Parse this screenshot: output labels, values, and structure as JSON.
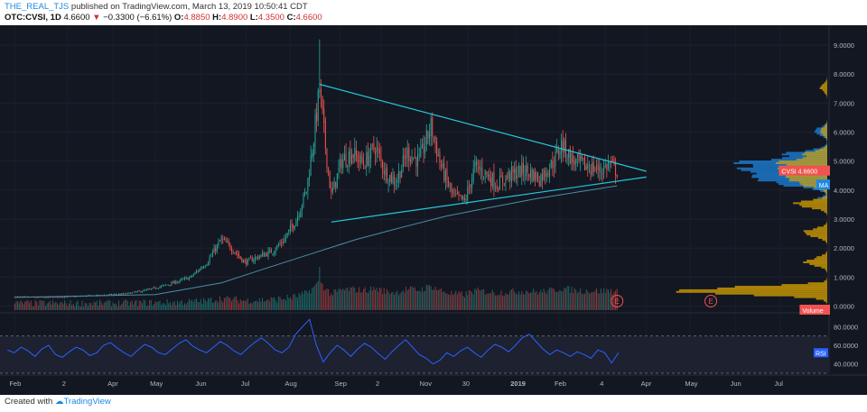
{
  "header": {
    "username": "THE_REAL_TJS",
    "published_text": "published on TradingView.com, March 13, 2019 10:50:41 CDT",
    "symbol_line": "OTC:CVSI, 1D",
    "last": "4.6600",
    "change_arrow": "▼",
    "change": "−0.3300 (−6.61%)",
    "o_label": "O:",
    "o": "4.8850",
    "h_label": "H:",
    "h": "4.8900",
    "l_label": "L:",
    "l": "4.3500",
    "c_label": "C:",
    "c": "4.6600"
  },
  "footer": {
    "prefix": "Created with",
    "brand": "TradingView"
  },
  "colors": {
    "background": "#131722",
    "up": "#26a69a",
    "down": "#ef5350",
    "trendline": "#26c6da",
    "ma": "#4a8fa8",
    "rsi": "#2962ff",
    "volume_profile": "#e0a800",
    "volume_profile_value": "#1e88e5"
  },
  "chart_data": [
    {
      "type": "candlestick",
      "symbol": "OTC:CVSI",
      "interval": "1D",
      "x_tick_labels": [
        "Feb",
        "2",
        "Apr",
        "May",
        "Jun",
        "Jul",
        "Aug",
        "Sep",
        "2",
        "Nov",
        "30",
        "2019",
        "Feb",
        "4",
        "Apr",
        "May",
        "Jun",
        "Jul"
      ],
      "y_tick_labels": [
        "9.0000",
        "8.0000",
        "7.0000",
        "6.0000",
        "5.0000",
        "4.0000",
        "3.0000",
        "2.0000",
        "1.0000",
        "0.0000"
      ],
      "ylim": [
        -0.2,
        9.5
      ],
      "price_path": [
        [
          "2018-01-25",
          0.32
        ],
        [
          "2018-02-15",
          0.3
        ],
        [
          "2018-03-15",
          0.35
        ],
        [
          "2018-04-10",
          0.42
        ],
        [
          "2018-04-25",
          0.55
        ],
        [
          "2018-05-10",
          0.75
        ],
        [
          "2018-05-25",
          1.0
        ],
        [
          "2018-06-05",
          1.5
        ],
        [
          "2018-06-15",
          2.3
        ],
        [
          "2018-06-22",
          2.0
        ],
        [
          "2018-07-01",
          1.5
        ],
        [
          "2018-07-10",
          1.7
        ],
        [
          "2018-07-20",
          1.9
        ],
        [
          "2018-07-28",
          2.3
        ],
        [
          "2018-08-05",
          3.0
        ],
        [
          "2018-08-12",
          4.0
        ],
        [
          "2018-08-17",
          5.8
        ],
        [
          "2018-08-21",
          7.5
        ],
        [
          "2018-08-25",
          5.5
        ],
        [
          "2018-08-29",
          3.8
        ],
        [
          "2018-09-05",
          5.0
        ],
        [
          "2018-09-12",
          5.3
        ],
        [
          "2018-09-20",
          4.9
        ],
        [
          "2018-09-28",
          5.5
        ],
        [
          "2018-10-05",
          4.6
        ],
        [
          "2018-10-12",
          4.3
        ],
        [
          "2018-10-20",
          5.3
        ],
        [
          "2018-10-28",
          5.0
        ],
        [
          "2018-11-05",
          6.2
        ],
        [
          "2018-11-12",
          4.8
        ],
        [
          "2018-11-20",
          3.8
        ],
        [
          "2018-11-28",
          3.6
        ],
        [
          "2018-12-05",
          4.8
        ],
        [
          "2018-12-12",
          4.6
        ],
        [
          "2018-12-20",
          4.2
        ],
        [
          "2018-12-28",
          4.5
        ],
        [
          "2019-01-08",
          4.7
        ],
        [
          "2019-01-18",
          4.4
        ],
        [
          "2019-01-28",
          5.0
        ],
        [
          "2019-02-02",
          5.6
        ],
        [
          "2019-02-10",
          5.0
        ],
        [
          "2019-02-20",
          4.8
        ],
        [
          "2019-03-01",
          4.7
        ],
        [
          "2019-03-07",
          4.9
        ],
        [
          "2019-03-12",
          4.66
        ]
      ],
      "overlays": [
        {
          "name": "upper-trendline",
          "points": [
            [
              "2018-08-21",
              7.65
            ],
            [
              "2019-04-01",
              4.65
            ]
          ]
        },
        {
          "name": "lower-trendline",
          "points": [
            [
              "2018-08-29",
              2.9
            ],
            [
              "2019-04-01",
              4.45
            ]
          ]
        },
        {
          "name": "MA",
          "points": [
            [
              "2018-01-25",
              0.3
            ],
            [
              "2018-05-01",
              0.4
            ],
            [
              "2018-06-15",
              0.8
            ],
            [
              "2018-07-15",
              1.3
            ],
            [
              "2018-08-15",
              1.8
            ],
            [
              "2018-09-15",
              2.3
            ],
            [
              "2018-10-15",
              2.7
            ],
            [
              "2018-11-15",
              3.1
            ],
            [
              "2018-12-15",
              3.4
            ],
            [
              "2019-01-15",
              3.7
            ],
            [
              "2019-02-15",
              3.95
            ],
            [
              "2019-03-12",
              4.15
            ]
          ]
        }
      ],
      "earnings_markers": [
        {
          "date": "2019-03-12",
          "label": "E"
        },
        {
          "date": "2019-05-15",
          "label": "E"
        }
      ],
      "price_labels": [
        {
          "label": "CVSI",
          "value": "4.6600"
        },
        {
          "label": "MA",
          "value": ""
        },
        {
          "label": "Volume",
          "value": ""
        }
      ],
      "volume_profile": [
        [
          4.5,
          1.0
        ],
        [
          4.7,
          0.95
        ],
        [
          4.9,
          0.8
        ],
        [
          4.2,
          0.6
        ],
        [
          5.2,
          0.45
        ],
        [
          3.5,
          0.35
        ],
        [
          2.5,
          0.3
        ],
        [
          6.0,
          0.15
        ],
        [
          7.5,
          0.08
        ],
        [
          0.5,
          0.9
        ],
        [
          1.5,
          0.25
        ]
      ]
    },
    {
      "type": "line",
      "name": "RSI",
      "y_tick_labels": [
        "80.0000",
        "60.0000",
        "40.0000"
      ],
      "ylim": [
        30,
        90
      ],
      "bands": [
        30,
        70
      ],
      "values": [
        55,
        52,
        58,
        54,
        48,
        56,
        60,
        50,
        47,
        53,
        58,
        55,
        49,
        52,
        60,
        63,
        57,
        52,
        48,
        55,
        61,
        58,
        52,
        50,
        56,
        62,
        66,
        59,
        55,
        52,
        58,
        64,
        60,
        54,
        50,
        57,
        63,
        68,
        62,
        55,
        52,
        58,
        72,
        80,
        88,
        60,
        42,
        52,
        60,
        55,
        48,
        56,
        62,
        58,
        51,
        45,
        53,
        60,
        66,
        58,
        50,
        46,
        40,
        44,
        52,
        48,
        54,
        58,
        52,
        47,
        55,
        61,
        58,
        53,
        60,
        68,
        72,
        64,
        56,
        50,
        55,
        52,
        48,
        53,
        50,
        46,
        55,
        52,
        41,
        52
      ],
      "last_value_label": "RSI"
    }
  ]
}
